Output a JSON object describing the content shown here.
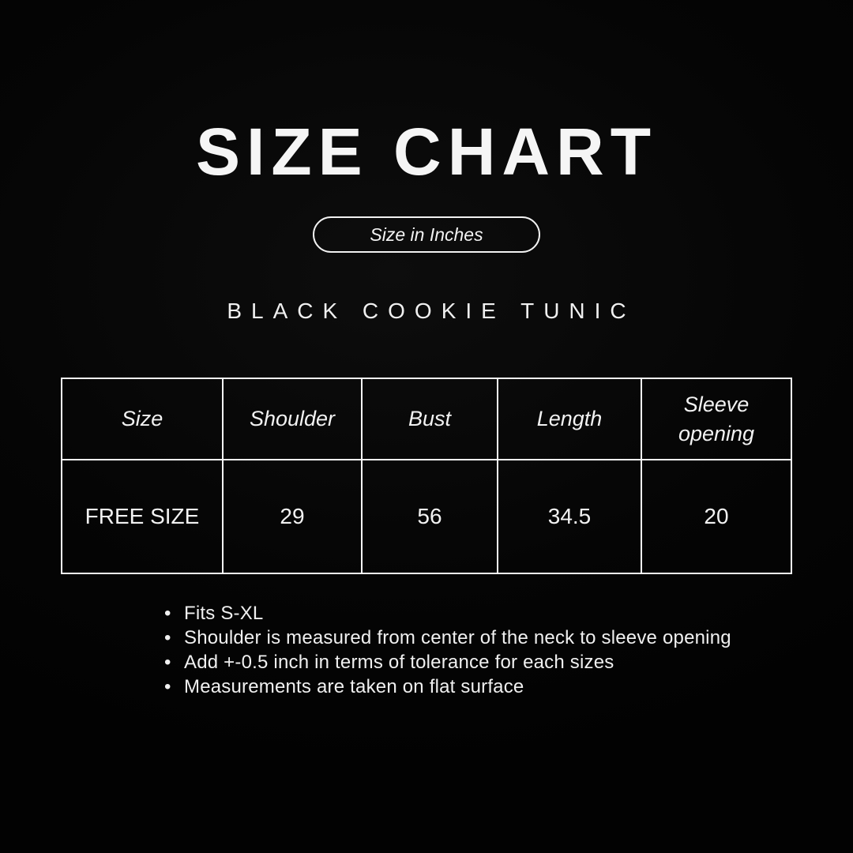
{
  "header": {
    "title": "SIZE CHART",
    "badge_label": "Size in Inches",
    "product_name": "BLACK COOKIE TUNIC"
  },
  "chart_data": {
    "type": "table",
    "title": "SIZE CHART",
    "unit": "Size in Inches",
    "product": "BLACK COOKIE TUNIC",
    "columns": [
      "Size",
      "Shoulder",
      "Bust",
      "Length",
      "Sleeve opening"
    ],
    "rows": [
      [
        "FREE SIZE",
        "29",
        "56",
        "34.5",
        "20"
      ]
    ]
  },
  "notes": [
    "Fits S-XL",
    "Shoulder is measured from center of the neck to sleeve opening",
    "Add +-0.5 inch in terms of tolerance for each sizes",
    "Measurements are taken on flat surface"
  ],
  "colors": {
    "background": "#050505",
    "text": "#f2f2f2",
    "table_border": "#f8f8f8"
  }
}
